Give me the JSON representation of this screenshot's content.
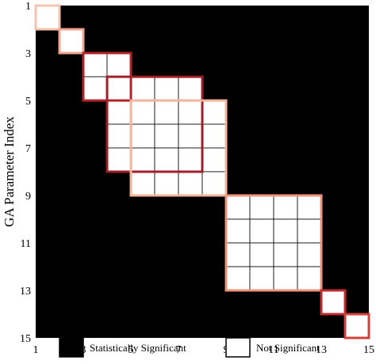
{
  "chart_data": {
    "type": "heatmap",
    "xlabel": "GA Parameter Index",
    "ylabel": "GA Parameter Index",
    "x_ticks": [
      1,
      3,
      5,
      7,
      9,
      11,
      13,
      15
    ],
    "y_ticks": [
      1,
      3,
      5,
      7,
      9,
      11,
      13,
      15
    ],
    "x_range": [
      1,
      15
    ],
    "y_range": [
      1,
      15
    ],
    "y_inverted": true,
    "cell_values": {
      "statistically_significant_color": "#000000",
      "not_significant_color": "#ffffff",
      "not_significant_cells_note": "listed as inclusive index ranges [start, end] on both axes",
      "not_significant_blocks": [
        [
          1,
          1
        ],
        [
          2,
          2
        ],
        [
          3,
          4
        ],
        [
          4,
          7
        ],
        [
          5,
          8
        ],
        [
          9,
          12
        ],
        [
          13,
          13
        ],
        [
          14,
          14
        ]
      ]
    },
    "highlight_boxes": [
      {
        "from": 1,
        "to": 1,
        "color": "#f7c2ae"
      },
      {
        "from": 2,
        "to": 2,
        "color": "#f2a58f"
      },
      {
        "from": 3,
        "to": 4,
        "color": "#b0232a"
      },
      {
        "from": 4,
        "to": 7,
        "color": "#9e1f28"
      },
      {
        "from": 5,
        "to": 8,
        "color": "#f5b59a"
      },
      {
        "from": 9,
        "to": 12,
        "color": "#ee9378"
      },
      {
        "from": 13,
        "to": 13,
        "color": "#c22b2d"
      },
      {
        "from": 14,
        "to": 14,
        "color": "#d2423c"
      }
    ],
    "legend": [
      {
        "label": "Statistically Significant",
        "color": "#000000"
      },
      {
        "label": "Not Significant",
        "color": "#ffffff"
      }
    ]
  }
}
